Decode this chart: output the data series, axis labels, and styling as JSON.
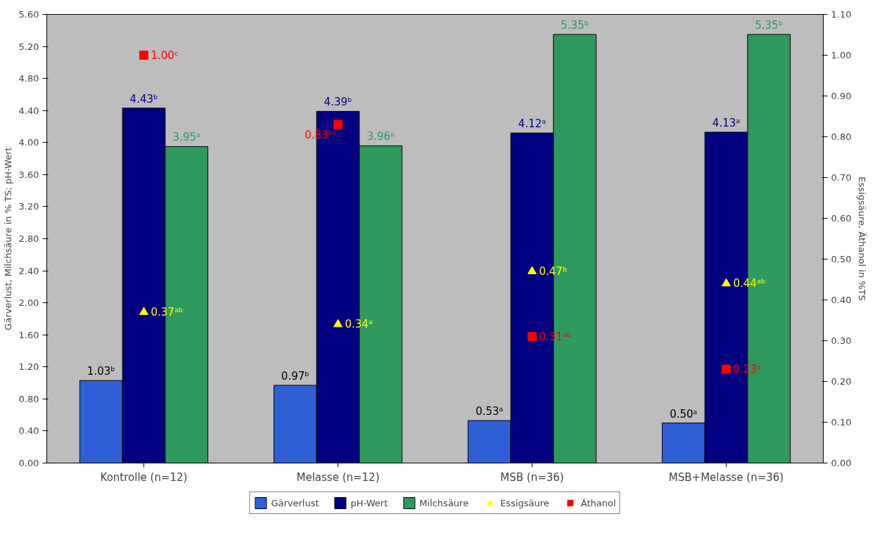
{
  "chart_data": {
    "type": "bar",
    "ylabel": "Gärverlust, Milchsäure in % TS; pH-Wert",
    "y2label": "Essigsäure, Äthanol in %TS",
    "categories": [
      "Kontrolle (n=12)",
      "Melasse (n=12)",
      "MSB (n=36)",
      "MSB+Melasse (n=36)"
    ],
    "ylim": [
      0,
      5.6
    ],
    "yticks": [
      {
        "value": 0,
        "label": "0.00"
      },
      {
        "value": 0.4,
        "label": "0.40"
      },
      {
        "value": 0.8,
        "label": "0.80"
      },
      {
        "value": 1.2,
        "label": "1.20"
      },
      {
        "value": 1.6,
        "label": "1.60"
      },
      {
        "value": 2.0,
        "label": "2.00"
      },
      {
        "value": 2.4,
        "label": "2.40"
      },
      {
        "value": 2.8,
        "label": "2.80"
      },
      {
        "value": 3.2,
        "label": "3.20"
      },
      {
        "value": 3.6,
        "label": "3.60"
      },
      {
        "value": 4.0,
        "label": "4.00"
      },
      {
        "value": 4.4,
        "label": "4.40"
      },
      {
        "value": 4.8,
        "label": "4.80"
      },
      {
        "value": 5.2,
        "label": "5.20"
      },
      {
        "value": 5.6,
        "label": "5.60"
      }
    ],
    "y2lim": [
      0,
      1.1
    ],
    "y2ticks": [
      {
        "value": 0,
        "label": "0.00"
      },
      {
        "value": 0.1,
        "label": "0.10"
      },
      {
        "value": 0.2,
        "label": "0.20"
      },
      {
        "value": 0.3,
        "label": "0.30"
      },
      {
        "value": 0.4,
        "label": "0.40"
      },
      {
        "value": 0.5,
        "label": "0.50"
      },
      {
        "value": 0.6,
        "label": "0.60"
      },
      {
        "value": 0.7,
        "label": "0.70"
      },
      {
        "value": 0.8,
        "label": "0.80"
      },
      {
        "value": 0.9,
        "label": "0.90"
      },
      {
        "value": 1.0,
        "label": "1.00"
      },
      {
        "value": 1.1,
        "label": "1.10"
      }
    ],
    "grid": false,
    "legend": "bottom",
    "series": [
      {
        "name": "Gärverlust",
        "color": "#2f5fd6",
        "values": [
          1.03,
          0.97,
          0.53,
          0.5
        ],
        "value_labels": [
          "1.03ᵇ",
          "0.97ᵇ",
          "0.53ᵃ",
          "0.50ᵃ"
        ]
      },
      {
        "name": "pH-Wert",
        "color": "#000080",
        "values": [
          4.43,
          4.39,
          4.12,
          4.13
        ],
        "value_labels": [
          "4.43ᵇ",
          "4.39ᵇ",
          "4.12ᵃ",
          "4.13ᵃ"
        ]
      },
      {
        "name": "Milchsäure",
        "color": "#2e9a5e",
        "values": [
          3.95,
          3.96,
          5.35,
          5.35
        ],
        "value_labels": [
          "3.95ᵃ",
          "3.96ᵃ",
          "5.35ᵇ",
          "5.35ᵇ"
        ]
      },
      {
        "name": "Essigsäure",
        "type": "scatter",
        "axis": "y2",
        "marker": "triangle",
        "color": "#ffff00",
        "values": [
          0.37,
          0.34,
          0.47,
          0.44
        ],
        "value_labels": [
          "0.37ᵃᵇ",
          "0.34ᵃ",
          "0.47ᵇ",
          "0.44ᵃᵇ"
        ]
      },
      {
        "name": "Äthanol",
        "type": "scatter",
        "axis": "y2",
        "marker": "square",
        "color": "#ff0000",
        "values": [
          1.0,
          0.83,
          0.31,
          0.23
        ],
        "value_labels": [
          "1.00ᶜ",
          "0.83ᵇᶜ",
          "0.31ᵃᵇ",
          "0.23ᵃ"
        ]
      }
    ]
  }
}
